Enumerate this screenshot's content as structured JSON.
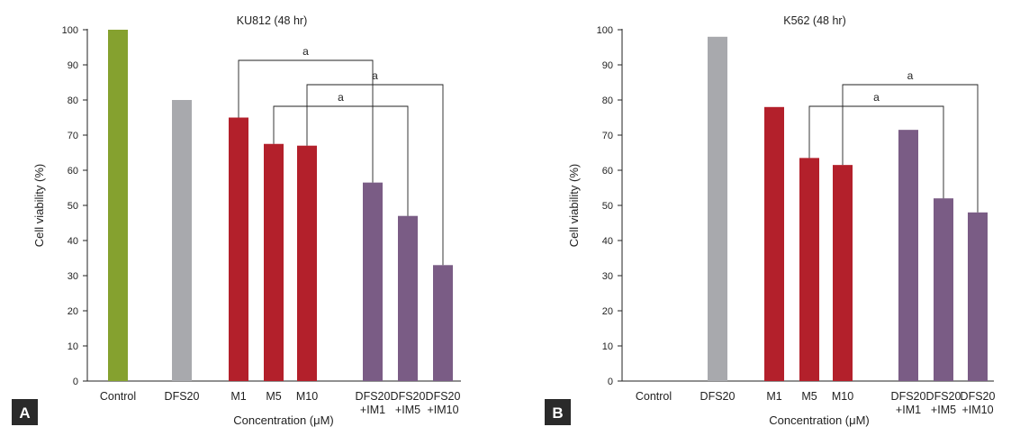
{
  "colors": {
    "control": "#85a12f",
    "dfs": "#a8a9ad",
    "im": "#b3202b",
    "combo": "#7a5c85",
    "panel_badge": "#2a2a2a"
  },
  "chart_data": [
    {
      "type": "bar",
      "panel": "A",
      "title": "KU812 (48 hr)",
      "xlabel": "Concentration (μM)",
      "ylabel": "Cell viability (%)",
      "ylim": [
        0,
        100
      ],
      "yticks": [
        0,
        10,
        20,
        30,
        40,
        50,
        60,
        70,
        80,
        90,
        100
      ],
      "grid": false,
      "categories": [
        {
          "line1": "Control",
          "line2": ""
        },
        {
          "line1": "DFS20",
          "line2": ""
        },
        {
          "line1": "M1",
          "line2": ""
        },
        {
          "line1": "M5",
          "line2": ""
        },
        {
          "line1": "M10",
          "line2": ""
        },
        {
          "line1": "DFS20",
          "line2": "+IM1"
        },
        {
          "line1": "DFS20",
          "line2": "+IM5"
        },
        {
          "line1": "DFS20",
          "line2": "+IM10"
        }
      ],
      "values": [
        100,
        80,
        75,
        67.5,
        67,
        56.5,
        47,
        33
      ],
      "groups": [
        "control",
        "dfs",
        "im",
        "im",
        "im",
        "combo",
        "combo",
        "combo"
      ],
      "significance": [
        {
          "from": 2,
          "to": 5,
          "label": "a"
        },
        {
          "from": 4,
          "to": 7,
          "label": "a"
        },
        {
          "from": 3,
          "to": 6,
          "label": "a"
        }
      ]
    },
    {
      "type": "bar",
      "panel": "B",
      "title": "K562 (48 hr)",
      "xlabel": "Concentration (μM)",
      "ylabel": "Cell viability (%)",
      "ylim": [
        0,
        100
      ],
      "yticks": [
        0,
        10,
        20,
        30,
        40,
        50,
        60,
        70,
        80,
        90,
        100
      ],
      "grid": false,
      "categories": [
        {
          "line1": "Control",
          "line2": ""
        },
        {
          "line1": "DFS20",
          "line2": ""
        },
        {
          "line1": "M1",
          "line2": ""
        },
        {
          "line1": "M5",
          "line2": ""
        },
        {
          "line1": "M10",
          "line2": ""
        },
        {
          "line1": "DFS20",
          "line2": "+IM1"
        },
        {
          "line1": "DFS20",
          "line2": "+IM5"
        },
        {
          "line1": "DFS20",
          "line2": "+IM10"
        }
      ],
      "values": [
        null,
        98,
        78,
        63.5,
        61.5,
        71.5,
        52,
        48
      ],
      "groups": [
        "control",
        "dfs",
        "im",
        "im",
        "im",
        "combo",
        "combo",
        "combo"
      ],
      "significance": [
        {
          "from": 4,
          "to": 7,
          "label": "a"
        },
        {
          "from": 3,
          "to": 6,
          "label": "a"
        }
      ]
    }
  ]
}
